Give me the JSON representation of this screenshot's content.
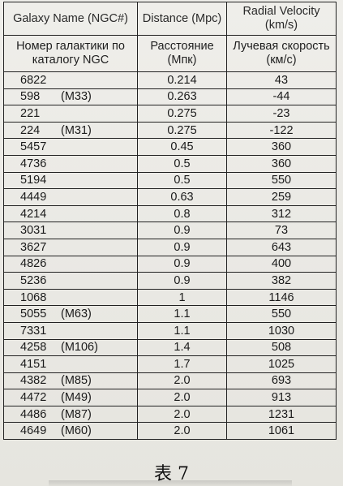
{
  "table": {
    "header_en": {
      "name": "Galaxy Name (NGC#)",
      "distance": "Distance (Mpc)",
      "velocity": "Radial Velocity (km/s)"
    },
    "header_ru": {
      "name": "Номер галактики по каталогу NGC",
      "distance": "Расстояние (Мпк)",
      "velocity": "Лучевая скорость (км/с)"
    },
    "rows": [
      {
        "ngc": "6822",
        "messier": "",
        "distance": "0.214",
        "velocity": "43"
      },
      {
        "ngc": "598",
        "messier": "(M33)",
        "distance": "0.263",
        "velocity": "-44"
      },
      {
        "ngc": "221",
        "messier": "",
        "distance": "0.275",
        "velocity": "-23"
      },
      {
        "ngc": "224",
        "messier": "(M31)",
        "distance": "0.275",
        "velocity": "-122"
      },
      {
        "ngc": "5457",
        "messier": "",
        "distance": "0.45",
        "velocity": "360"
      },
      {
        "ngc": "4736",
        "messier": "",
        "distance": "0.5",
        "velocity": "360"
      },
      {
        "ngc": "5194",
        "messier": "",
        "distance": "0.5",
        "velocity": "550"
      },
      {
        "ngc": "4449",
        "messier": "",
        "distance": "0.63",
        "velocity": "259"
      },
      {
        "ngc": "4214",
        "messier": "",
        "distance": "0.8",
        "velocity": "312"
      },
      {
        "ngc": "3031",
        "messier": "",
        "distance": "0.9",
        "velocity": "73"
      },
      {
        "ngc": "3627",
        "messier": "",
        "distance": "0.9",
        "velocity": "643"
      },
      {
        "ngc": "4826",
        "messier": "",
        "distance": "0.9",
        "velocity": "400"
      },
      {
        "ngc": "5236",
        "messier": "",
        "distance": "0.9",
        "velocity": "382"
      },
      {
        "ngc": "1068",
        "messier": "",
        "distance": "1",
        "velocity": "1146"
      },
      {
        "ngc": "5055",
        "messier": "(M63)",
        "distance": "1.1",
        "velocity": "550"
      },
      {
        "ngc": "7331",
        "messier": "",
        "distance": "1.1",
        "velocity": "1030"
      },
      {
        "ngc": "4258",
        "messier": "(M106)",
        "distance": "1.4",
        "velocity": "508"
      },
      {
        "ngc": "4151",
        "messier": "",
        "distance": "1.7",
        "velocity": "1025"
      },
      {
        "ngc": "4382",
        "messier": "(M85)",
        "distance": "2.0",
        "velocity": "693"
      },
      {
        "ngc": "4472",
        "messier": "(M49)",
        "distance": "2.0",
        "velocity": "913"
      },
      {
        "ngc": "4486",
        "messier": "(M87)",
        "distance": "2.0",
        "velocity": "1231"
      },
      {
        "ngc": "4649",
        "messier": "(M60)",
        "distance": "2.0",
        "velocity": "1061"
      }
    ]
  },
  "caption": "表 7"
}
